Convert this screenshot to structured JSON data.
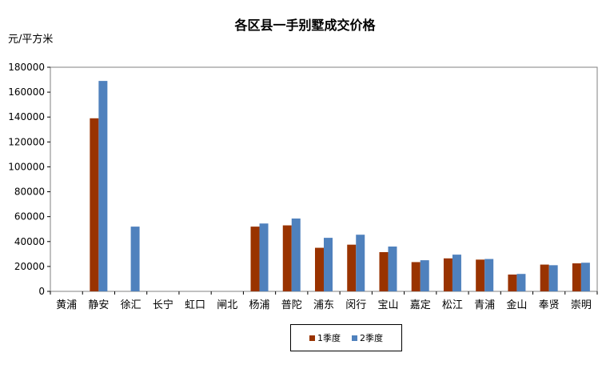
{
  "chart_data": {
    "type": "bar",
    "title": "各区县一手别墅成交价格",
    "ylabel": "元/平方米",
    "xlabel": "",
    "ylim": [
      0,
      180000
    ],
    "yticks": [
      0,
      20000,
      40000,
      60000,
      80000,
      100000,
      120000,
      140000,
      160000,
      180000
    ],
    "grid": false,
    "legend_position": "bottom",
    "categories": [
      "黄浦",
      "静安",
      "徐汇",
      "长宁",
      "虹口",
      "闸北",
      "杨浦",
      "普陀",
      "浦东",
      "闵行",
      "宝山",
      "嘉定",
      "松江",
      "青浦",
      "金山",
      "奉贤",
      "崇明"
    ],
    "series": [
      {
        "name": "1季度",
        "color": "#993300",
        "values": [
          null,
          139000,
          null,
          null,
          null,
          null,
          52000,
          53000,
          35000,
          37500,
          31500,
          23500,
          26500,
          25500,
          13500,
          21500,
          22500
        ]
      },
      {
        "name": "2季度",
        "color": "#4F81BD",
        "values": [
          null,
          169000,
          52000,
          null,
          null,
          null,
          54500,
          58500,
          43000,
          45500,
          36000,
          25000,
          29500,
          26000,
          14000,
          21000,
          23000
        ]
      }
    ]
  }
}
